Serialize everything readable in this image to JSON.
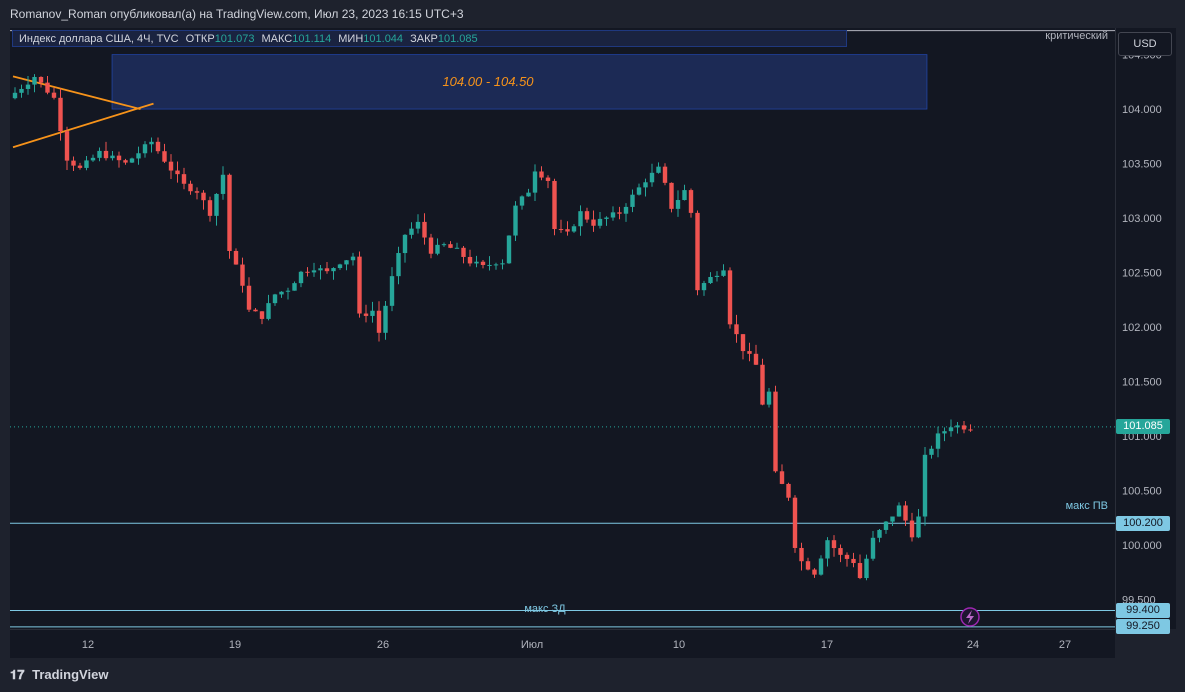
{
  "header": {
    "publisher_line": "Romanov_Roman опубликовал(а) на TradingView.com, Июл 23, 2023 16:15 UTC+3"
  },
  "legend": {
    "symbol": "Индекс доллара США, 4Ч, TVC",
    "open_label": "ОТКР",
    "open": "101.073",
    "high_label": "МАКС",
    "high": "101.114",
    "low_label": "МИН",
    "low": "101.044",
    "close_label": "ЗАКР",
    "close": "101.085"
  },
  "currency_button": "USD",
  "critical_label": "критический",
  "zone_label": "104.00 - 104.50",
  "level_labels": {
    "max_pv": "макс ПВ",
    "max_zd": "макс ЗД"
  },
  "price_tags": {
    "current": "101.085",
    "max_pv": "100.200",
    "max_zd_upper": "99.400",
    "max_zd_lower": "99.250"
  },
  "footer": {
    "brand": "TradingView"
  },
  "colors": {
    "up": "#26a69a",
    "down": "#ef5350",
    "zone": "#1c2a55",
    "zone_border": "#2962ff",
    "level_line": "#7ec8e3",
    "triangle": "#f7931a"
  },
  "chart_data": {
    "type": "candlestick",
    "symbol": "DXY 4H",
    "y_ticks": [
      "104.500",
      "104.000",
      "103.500",
      "103.000",
      "102.500",
      "102.000",
      "101.500",
      "101.000",
      "100.500",
      "100.000",
      "99.500"
    ],
    "x_ticks": [
      "12",
      "19",
      "26",
      "Июл",
      "10",
      "17",
      "24",
      "27"
    ],
    "ylim": [
      99.25,
      104.75
    ],
    "zone": [
      104.0,
      104.5
    ],
    "levels": {
      "critical": 104.72,
      "max_pv": 100.2,
      "max_zd_upper": 99.4,
      "max_zd_lower": 99.25,
      "current": 101.085
    },
    "path_anchors": [
      [
        0,
        104.1
      ],
      [
        8,
        104.3
      ],
      [
        14,
        104.1
      ],
      [
        18,
        103.55
      ],
      [
        22,
        103.45
      ],
      [
        28,
        103.6
      ],
      [
        32,
        103.55
      ],
      [
        36,
        103.5
      ],
      [
        44,
        103.7
      ],
      [
        50,
        103.45
      ],
      [
        54,
        103.3
      ],
      [
        58,
        103.25
      ],
      [
        62,
        103.05
      ],
      [
        66,
        103.4
      ],
      [
        68,
        102.7
      ],
      [
        72,
        102.4
      ],
      [
        74,
        102.15
      ],
      [
        78,
        102.1
      ],
      [
        82,
        102.3
      ],
      [
        86,
        102.35
      ],
      [
        90,
        102.5
      ],
      [
        94,
        102.55
      ],
      [
        98,
        102.5
      ],
      [
        102,
        102.6
      ],
      [
        106,
        102.65
      ],
      [
        108,
        102.1
      ],
      [
        112,
        102.15
      ],
      [
        114,
        101.95
      ],
      [
        118,
        102.45
      ],
      [
        122,
        102.85
      ],
      [
        126,
        102.95
      ],
      [
        130,
        102.7
      ],
      [
        134,
        102.75
      ],
      [
        138,
        102.7
      ],
      [
        142,
        102.6
      ],
      [
        146,
        102.55
      ],
      [
        150,
        102.6
      ],
      [
        152,
        102.6
      ],
      [
        156,
        103.1
      ],
      [
        160,
        103.25
      ],
      [
        162,
        103.45
      ],
      [
        166,
        103.35
      ],
      [
        168,
        102.9
      ],
      [
        172,
        102.85
      ],
      [
        176,
        103.05
      ],
      [
        180,
        102.95
      ],
      [
        184,
        103.0
      ],
      [
        188,
        103.05
      ],
      [
        192,
        103.2
      ],
      [
        196,
        103.35
      ],
      [
        200,
        103.45
      ],
      [
        202,
        103.3
      ],
      [
        204,
        103.1
      ],
      [
        208,
        103.25
      ],
      [
        210,
        103.05
      ],
      [
        212,
        102.35
      ],
      [
        216,
        102.45
      ],
      [
        220,
        102.55
      ],
      [
        222,
        102.05
      ],
      [
        226,
        101.8
      ],
      [
        230,
        101.65
      ],
      [
        232,
        101.3
      ],
      [
        234,
        101.4
      ],
      [
        236,
        100.65
      ],
      [
        240,
        100.45
      ],
      [
        242,
        100.0
      ],
      [
        244,
        99.85
      ],
      [
        248,
        99.75
      ],
      [
        252,
        100.05
      ],
      [
        256,
        99.9
      ],
      [
        260,
        99.85
      ],
      [
        262,
        99.7
      ],
      [
        266,
        100.05
      ],
      [
        270,
        100.2
      ],
      [
        274,
        100.35
      ],
      [
        278,
        100.1
      ],
      [
        280,
        100.25
      ],
      [
        282,
        100.8
      ],
      [
        286,
        101.0
      ],
      [
        290,
        101.1
      ],
      [
        294,
        101.085
      ]
    ],
    "triangle": {
      "upper": [
        [
          0,
          104.3
        ],
        [
          30,
          104.0
        ]
      ],
      "lower": [
        [
          0,
          103.65
        ],
        [
          34,
          104.05
        ]
      ]
    }
  }
}
